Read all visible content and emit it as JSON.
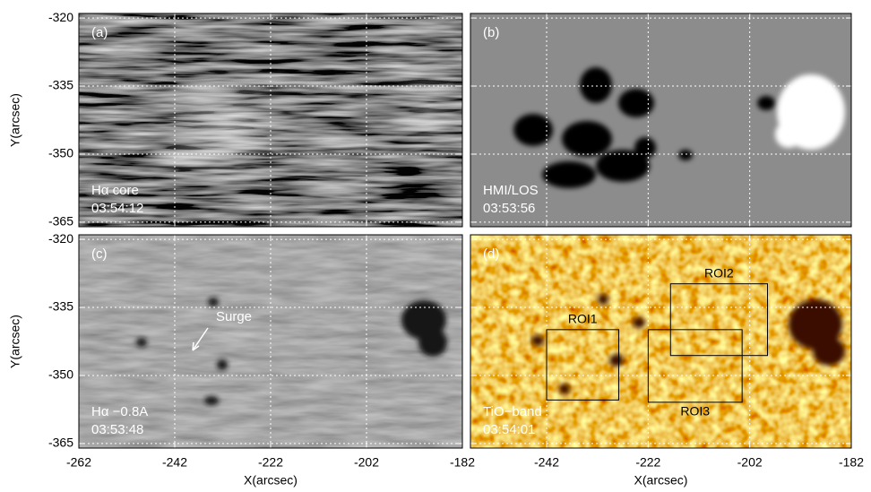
{
  "chart_data": [
    {
      "type": "image",
      "panel_label": "(a)",
      "caption": [
        "Hα core",
        "03:54:12"
      ],
      "ylabel": "Y(arcsec)",
      "xlim": [
        -262,
        -182
      ],
      "ylim": [
        -319,
        -366
      ],
      "xticks": [
        -262,
        -242,
        -222,
        -202,
        -182
      ],
      "yticks": [
        -320,
        -335,
        -350,
        -365
      ],
      "show_xtick_labels": false,
      "show_ytick_labels": true,
      "grid": true
    },
    {
      "type": "image",
      "panel_label": "(b)",
      "caption": [
        "HMI/LOS",
        "03:53:56"
      ],
      "xlim": [
        -257,
        -182
      ],
      "ylim": [
        -319,
        -366
      ],
      "xticks": [
        -242,
        -222,
        -202,
        -182
      ],
      "yticks": [
        -320,
        -335,
        -350,
        -365
      ],
      "show_xtick_labels": false,
      "show_ytick_labels": false,
      "grid": true
    },
    {
      "type": "image",
      "panel_label": "(c)",
      "caption": [
        "Hα −0.8A",
        "03:53:48"
      ],
      "ylabel": "Y(arcsec)",
      "xlabel": "X(arcsec)",
      "annotations": [
        "Surge"
      ],
      "xlim": [
        -262,
        -182
      ],
      "ylim": [
        -319,
        -366
      ],
      "xticks": [
        -262,
        -242,
        -222,
        -202,
        -182
      ],
      "yticks": [
        -320,
        -335,
        -350,
        -365
      ],
      "show_xtick_labels": true,
      "show_ytick_labels": true,
      "grid": true
    },
    {
      "type": "image",
      "panel_label": "(d)",
      "caption": [
        "TiO−band",
        "03:54:01"
      ],
      "xlabel": "X(arcsec)",
      "rois": [
        {
          "label": "ROI1",
          "x": [
            -242.0,
            -227.8
          ],
          "y": [
            -339.9,
            -355.4
          ]
        },
        {
          "label": "ROI2",
          "x": [
            -217.6,
            -198.5
          ],
          "y": [
            -329.8,
            -345.6
          ]
        },
        {
          "label": "ROI3",
          "x": [
            -222.0,
            -203.5
          ],
          "y": [
            -339.9,
            -355.9
          ]
        }
      ],
      "roi_color": "#000",
      "xlim": [
        -257,
        -182
      ],
      "ylim": [
        -319,
        -366
      ],
      "xticks": [
        -242,
        -222,
        -202,
        -182
      ],
      "yticks": [
        -320,
        -335,
        -350,
        -365
      ],
      "show_xtick_labels": true,
      "show_ytick_labels": false,
      "grid": true
    }
  ]
}
